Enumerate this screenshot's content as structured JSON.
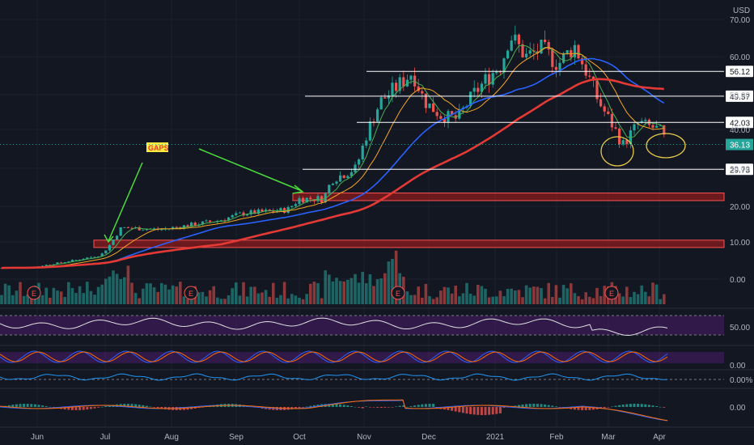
{
  "currency": "USD",
  "chart_data": {
    "type": "candlestick",
    "y_axis_ticks": [
      "70.00",
      "60.00",
      "50.00",
      "40.00",
      "30.00",
      "20.00",
      "10.00",
      "0.00"
    ],
    "x_axis_ticks": [
      "Jun",
      "Jul",
      "Aug",
      "Sep",
      "Oct",
      "Nov",
      "Dec",
      "2021",
      "Feb",
      "Mar",
      "Apr"
    ],
    "last_price": "36.13",
    "last_price_color": "#26a69a",
    "horizontal_levels": [
      {
        "label": "56.12",
        "value": 56.12
      },
      {
        "label": "49.57",
        "value": 49.57
      },
      {
        "label": "42.03",
        "value": 42.03
      },
      {
        "label": "29.73",
        "value": 29.73
      }
    ],
    "gap_zones": [
      {
        "from": 8.5,
        "to": 10.5,
        "color": "#b71c1c"
      },
      {
        "from": 21.5,
        "to": 23.5,
        "color": "#b71c1c"
      }
    ],
    "annotation": {
      "text": "GAPS",
      "bg": "#ffeb3b",
      "fg": "#e53935",
      "arrow_color": "#4cdb3c"
    },
    "earnings_markers": [
      "E",
      "E",
      "E",
      "E"
    ],
    "moving_averages": [
      {
        "color": "#4caf50"
      },
      {
        "color": "#f5a623"
      },
      {
        "color": "#2962ff"
      },
      {
        "color": "#e53935"
      }
    ],
    "indicator_panels": [
      {
        "label": "50.00"
      },
      {
        "label": "0.00"
      },
      {
        "label": "0.00%"
      },
      {
        "label": "0.00"
      }
    ],
    "colors": {
      "up": "#26a69a",
      "down": "#ef5350",
      "background": "#131722"
    }
  }
}
